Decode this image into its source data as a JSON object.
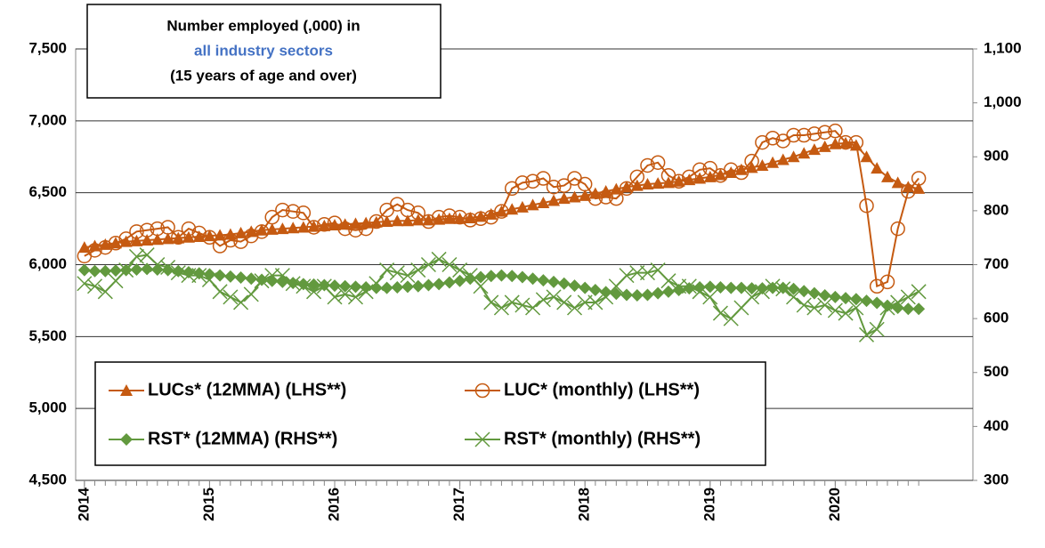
{
  "chart_data": {
    "type": "line",
    "title": "Number employed (,000) in",
    "title_highlight": "all industry sectors",
    "subtitle": "(15 years of age and over)",
    "x": [
      2014,
      2014.083,
      2014.167,
      2014.25,
      2014.333,
      2014.417,
      2014.5,
      2014.583,
      2014.667,
      2014.75,
      2014.833,
      2014.917,
      2015,
      2015.083,
      2015.167,
      2015.25,
      2015.333,
      2015.417,
      2015.5,
      2015.583,
      2015.667,
      2015.75,
      2015.833,
      2015.917,
      2016,
      2016.083,
      2016.167,
      2016.25,
      2016.333,
      2016.417,
      2016.5,
      2016.583,
      2016.667,
      2016.75,
      2016.833,
      2016.917,
      2017,
      2017.083,
      2017.167,
      2017.25,
      2017.333,
      2017.417,
      2017.5,
      2017.583,
      2017.667,
      2017.75,
      2017.833,
      2017.917,
      2018,
      2018.083,
      2018.167,
      2018.25,
      2018.333,
      2018.417,
      2018.5,
      2018.583,
      2018.667,
      2018.75,
      2018.833,
      2018.917,
      2019,
      2019.083,
      2019.167,
      2019.25,
      2019.333,
      2019.417,
      2019.5,
      2019.583,
      2019.667,
      2019.75,
      2019.833,
      2019.917,
      2020,
      2020.083,
      2020.167,
      2020.25,
      2020.333,
      2020.417,
      2020.5,
      2020.583,
      2020.667
    ],
    "xlim": [
      2013.93,
      2021.1
    ],
    "xticks": [
      2014,
      2015,
      2016,
      2017,
      2018,
      2019,
      2020
    ],
    "ylim": [
      4500,
      7500
    ],
    "yticks": [
      {
        "value": 4500,
        "label": "4,500"
      },
      {
        "value": 5000,
        "label": "5,000"
      },
      {
        "value": 5500,
        "label": "5,500"
      },
      {
        "value": 6000,
        "label": "6,000"
      },
      {
        "value": 6500,
        "label": "6,500"
      },
      {
        "value": 7000,
        "label": "7,000"
      },
      {
        "value": 7500,
        "label": "7,500"
      }
    ],
    "y2lim": [
      300,
      1100
    ],
    "y2ticks": [
      300,
      400,
      500,
      600,
      700,
      800,
      900,
      {
        "value": 1000,
        "label": "1,000"
      },
      {
        "value": 1100,
        "label": "1,100"
      }
    ],
    "grid": true,
    "legend": "lower left",
    "series": [
      {
        "name": "LUCs* (12MMA) (LHS**)",
        "color": "#c55a11",
        "marker": "triangle",
        "axis": "y",
        "values": [
          6120,
          6130,
          6140,
          6150,
          6160,
          6165,
          6170,
          6175,
          6180,
          6185,
          6190,
          6195,
          6200,
          6205,
          6210,
          6220,
          6230,
          6240,
          6245,
          6250,
          6255,
          6260,
          6265,
          6270,
          6275,
          6280,
          6285,
          6290,
          6295,
          6300,
          6305,
          6305,
          6310,
          6310,
          6315,
          6320,
          6320,
          6325,
          6335,
          6350,
          6370,
          6385,
          6400,
          6415,
          6430,
          6445,
          6460,
          6470,
          6480,
          6495,
          6510,
          6525,
          6540,
          6550,
          6560,
          6565,
          6570,
          6580,
          6590,
          6600,
          6610,
          6625,
          6640,
          6660,
          6675,
          6690,
          6710,
          6730,
          6750,
          6775,
          6800,
          6820,
          6840,
          6845,
          6830,
          6750,
          6670,
          6610,
          6570,
          6540,
          6530
        ]
      },
      {
        "name": "LUC* (monthly) (LHS**)",
        "color": "#c55a11",
        "marker": "circle",
        "axis": "y",
        "values": [
          6060,
          6100,
          6120,
          6150,
          6180,
          6230,
          6240,
          6250,
          6260,
          6190,
          6250,
          6220,
          6190,
          6130,
          6170,
          6160,
          6200,
          6230,
          6330,
          6380,
          6370,
          6360,
          6260,
          6280,
          6290,
          6250,
          6240,
          6250,
          6300,
          6380,
          6420,
          6380,
          6360,
          6300,
          6330,
          6340,
          6330,
          6310,
          6320,
          6330,
          6370,
          6530,
          6570,
          6580,
          6600,
          6540,
          6550,
          6600,
          6560,
          6460,
          6470,
          6460,
          6530,
          6610,
          6690,
          6710,
          6620,
          6580,
          6610,
          6660,
          6670,
          6620,
          6660,
          6640,
          6720,
          6850,
          6880,
          6860,
          6900,
          6900,
          6910,
          6920,
          6930,
          6850,
          6850,
          6410,
          5850,
          5880,
          6250,
          6510,
          6600
        ]
      },
      {
        "name": "RST* (12MMA) (RHS**)",
        "color": "#62993e",
        "marker": "diamond",
        "axis": "y2",
        "values": [
          690,
          688,
          688,
          689,
          690,
          691,
          692,
          691,
          690,
          688,
          686,
          684,
          682,
          680,
          678,
          676,
          674,
          672,
          670,
          668,
          666,
          664,
          663,
          662,
          661,
          660,
          659,
          658,
          657,
          657,
          658,
          659,
          660,
          662,
          664,
          667,
          670,
          674,
          677,
          679,
          680,
          679,
          677,
          674,
          671,
          668,
          665,
          661,
          657,
          653,
          649,
          646,
          644,
          643,
          644,
          647,
          650,
          653,
          656,
          658,
          659,
          658,
          657,
          657,
          656,
          656,
          657,
          657,
          655,
          651,
          647,
          643,
          640,
          638,
          636,
          633,
          629,
          624,
          620,
          618,
          618
        ]
      },
      {
        "name": "RST* (monthly) (RHS**)",
        "color": "#62993e",
        "marker": "cross",
        "axis": "y2",
        "values": [
          665,
          660,
          650,
          670,
          690,
          715,
          718,
          700,
          695,
          685,
          680,
          680,
          672,
          650,
          640,
          630,
          645,
          670,
          680,
          680,
          665,
          660,
          650,
          660,
          640,
          645,
          640,
          650,
          665,
          690,
          685,
          680,
          690,
          700,
          710,
          700,
          690,
          680,
          660,
          630,
          620,
          630,
          625,
          620,
          635,
          640,
          630,
          620,
          630,
          630,
          640,
          660,
          680,
          685,
          685,
          690,
          670,
          660,
          660,
          650,
          640,
          610,
          600,
          620,
          640,
          650,
          660,
          655,
          640,
          625,
          620,
          625,
          615,
          610,
          620,
          570,
          580,
          620,
          630,
          640,
          650
        ]
      }
    ]
  }
}
